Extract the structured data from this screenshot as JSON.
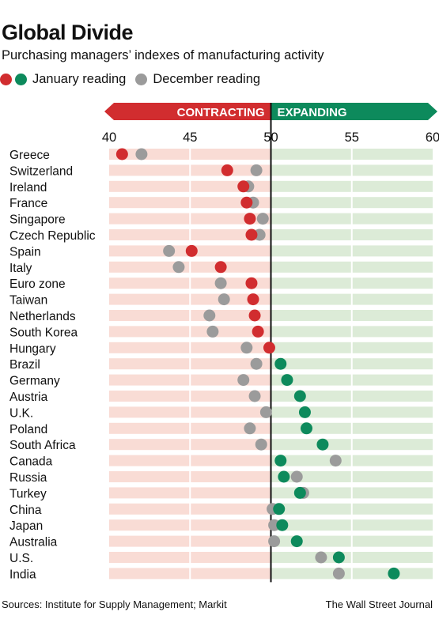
{
  "chart_data": {
    "type": "scatter",
    "title": "Global Divide",
    "subtitle": "Purchasing managers’ indexes of manufacturing activity",
    "legend": [
      {
        "label": "January reading",
        "colors": [
          "#d12d2f",
          "#0d8a5c"
        ]
      },
      {
        "label": "December reading",
        "colors": [
          "#9b9b9b"
        ]
      }
    ],
    "banner": {
      "left_label": "CONTRACTING",
      "right_label": "EXPANDING",
      "threshold": 50
    },
    "xlim": [
      40,
      60
    ],
    "xticks": [
      40,
      45,
      50,
      55,
      60
    ],
    "categories": [
      "Greece",
      "Switzerland",
      "Ireland",
      "France",
      "Singapore",
      "Czech Republic",
      "Spain",
      "Italy",
      "Euro zone",
      "Taiwan",
      "Netherlands",
      "South Korea",
      "Hungary",
      "Brazil",
      "Germany",
      "Austria",
      "U.K.",
      "Poland",
      "South Africa",
      "Canada",
      "Russia",
      "Turkey",
      "China",
      "Japan",
      "Australia",
      "U.S.",
      "India"
    ],
    "series": [
      {
        "name": "January reading",
        "values": [
          40.8,
          47.3,
          48.3,
          48.5,
          48.7,
          48.8,
          45.1,
          46.9,
          48.8,
          48.9,
          49.0,
          49.2,
          49.9,
          50.6,
          51.0,
          51.8,
          52.1,
          52.2,
          53.2,
          50.6,
          50.8,
          51.8,
          50.5,
          50.7,
          51.6,
          54.2,
          57.6
        ]
      },
      {
        "name": "December reading",
        "values": [
          42.0,
          49.1,
          48.6,
          48.9,
          49.5,
          49.3,
          43.7,
          44.3,
          46.9,
          47.1,
          46.2,
          46.4,
          48.5,
          49.1,
          48.3,
          49.0,
          49.7,
          48.7,
          49.4,
          54.0,
          51.6,
          52.0,
          50.1,
          50.2,
          50.2,
          53.1,
          54.2
        ]
      }
    ],
    "colors": {
      "contract": "#d12d2f",
      "expand": "#0d8a5c",
      "december": "#9b9b9b",
      "band_contract": "#f9dcd5",
      "band_expand": "#dcebd7"
    }
  },
  "footer": {
    "source": "Sources: Institute for Supply Management; Markit",
    "credit": "The Wall Street Journal"
  }
}
